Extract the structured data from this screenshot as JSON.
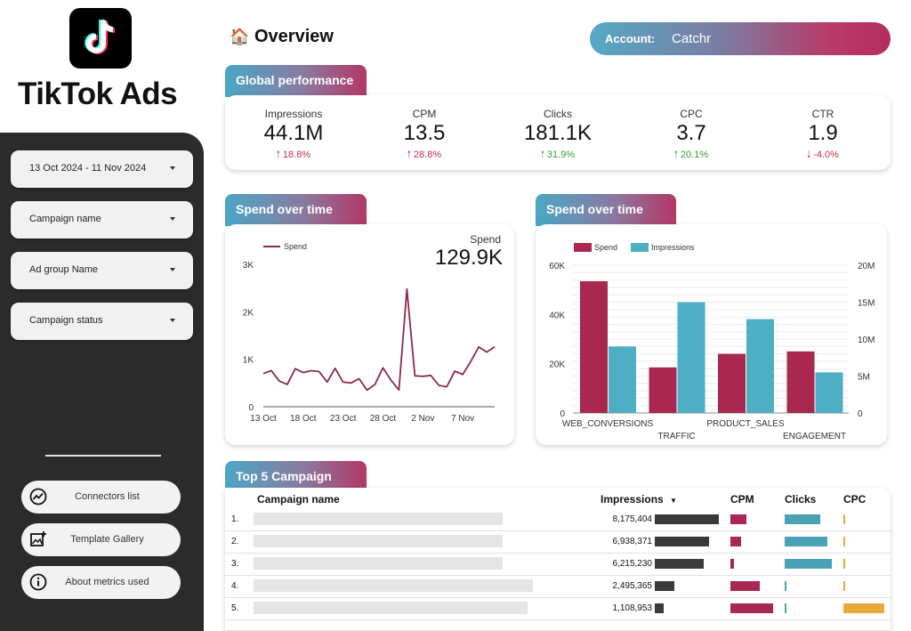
{
  "sidebar": {
    "brand": "TikTok Ads",
    "filters": [
      {
        "label": "13 Oct 2024 - 11 Nov 2024"
      },
      {
        "label": "Campaign name"
      },
      {
        "label": "Ad group Name"
      },
      {
        "label": "Campaign status"
      }
    ],
    "buttons": [
      {
        "label": "Connectors list",
        "icon": "analytics-icon"
      },
      {
        "label": "Template Gallery",
        "icon": "add-photo-icon"
      },
      {
        "label": "About metrics used",
        "icon": "info-icon"
      }
    ]
  },
  "header": {
    "title": "Overview",
    "title_icon": "house-icon",
    "account_label": "Account:",
    "account_value": "Catchr"
  },
  "global_performance": {
    "tab": "Global performance",
    "kpis": [
      {
        "label": "Impressions",
        "value": "44.1M",
        "delta": "18.8%",
        "direction": "up",
        "color": "#c0304a"
      },
      {
        "label": "CPM",
        "value": "13.5",
        "delta": "28.8%",
        "direction": "up",
        "color": "#c0304a"
      },
      {
        "label": "Clicks",
        "value": "181.1K",
        "delta": "31.9%",
        "direction": "up",
        "color": "#3a9a3f"
      },
      {
        "label": "CPC",
        "value": "3.7",
        "delta": "20.1%",
        "direction": "up",
        "color": "#3a9a3f"
      },
      {
        "label": "CTR",
        "value": "1.9",
        "delta": "-4.0%",
        "direction": "down",
        "color": "#c0304a"
      }
    ]
  },
  "spend_line": {
    "tab": "Spend over time",
    "legend": "Spend",
    "total_label": "Spend",
    "total_value": "129.9K"
  },
  "spend_bar": {
    "tab": "Spend over time",
    "legend": [
      "Spend",
      "Impressions"
    ]
  },
  "chart_data": [
    {
      "type": "line",
      "series": [
        {
          "name": "Spend",
          "color": "#8b2a4a"
        }
      ],
      "x_ticks": [
        "13 Oct",
        "18 Oct",
        "23 Oct",
        "28 Oct",
        "2 Nov",
        "7 Nov"
      ],
      "y_ticks": [
        "0",
        "1K",
        "2K",
        "3K"
      ],
      "ylim": [
        0,
        3000
      ],
      "x": [
        "13 Oct",
        "14 Oct",
        "15 Oct",
        "16 Oct",
        "17 Oct",
        "18 Oct",
        "19 Oct",
        "20 Oct",
        "21 Oct",
        "22 Oct",
        "23 Oct",
        "24 Oct",
        "25 Oct",
        "26 Oct",
        "27 Oct",
        "28 Oct",
        "29 Oct",
        "30 Oct",
        "31 Oct",
        "1 Nov",
        "2 Nov",
        "3 Nov",
        "4 Nov",
        "5 Nov",
        "6 Nov",
        "7 Nov",
        "8 Nov",
        "9 Nov",
        "10 Nov",
        "11 Nov"
      ],
      "values": [
        700,
        760,
        540,
        470,
        800,
        720,
        760,
        740,
        520,
        810,
        520,
        500,
        590,
        350,
        470,
        820,
        560,
        350,
        2480,
        650,
        640,
        660,
        450,
        420,
        750,
        680,
        950,
        1260,
        1150,
        1260
      ]
    },
    {
      "type": "bar",
      "categories": [
        "WEB_CONVERSIONS",
        "TRAFFIC",
        "PRODUCT_SALES",
        "ENGAGEMENT"
      ],
      "series": [
        {
          "name": "Spend",
          "color": "#a8284f",
          "axis": "left",
          "values": [
            53500,
            18500,
            24000,
            25000
          ]
        },
        {
          "name": "Impressions",
          "color": "#4eafc4",
          "axis": "right",
          "values": [
            9000000,
            15000000,
            12700000,
            5500000
          ]
        }
      ],
      "y_left_ticks": [
        "0",
        "20K",
        "40K",
        "60K"
      ],
      "y_left_lim": [
        0,
        60000
      ],
      "y_right_ticks": [
        "0",
        "5M",
        "10M",
        "15M",
        "20M"
      ],
      "y_right_lim": [
        0,
        20000000
      ]
    }
  ],
  "top_campaigns": {
    "tab": "Top 5 Campaign",
    "columns": [
      "Campaign name",
      "Impressions",
      "CPM",
      "Clicks",
      "CPC"
    ],
    "sort_indicator": "▼",
    "rows": [
      {
        "rank": "1.",
        "impressions": "8,175,404",
        "impressions_value": 8175404,
        "cpm": 0.32,
        "clicks": 0.75,
        "cpc": 0.03
      },
      {
        "rank": "2.",
        "impressions": "6,938,371",
        "impressions_value": 6938371,
        "cpm": 0.22,
        "clicks": 0.9,
        "cpc": 0.03
      },
      {
        "rank": "3.",
        "impressions": "6,215,230",
        "impressions_value": 6215230,
        "cpm": 0.07,
        "clicks": 1.0,
        "cpc": 0.03
      },
      {
        "rank": "4.",
        "impressions": "2,495,365",
        "impressions_value": 2495365,
        "cpm": 0.6,
        "clicks": 0.03,
        "cpc": 0.03
      },
      {
        "rank": "5.",
        "impressions": "1,108,953",
        "impressions_value": 1108953,
        "cpm": 0.88,
        "clicks": 0.03,
        "cpc": 1.0
      }
    ],
    "colors": {
      "impressions": "#3a3a3a",
      "cpm": "#a8284f",
      "clicks": "#4aa3b5",
      "cpc": "#e8a93b"
    }
  }
}
